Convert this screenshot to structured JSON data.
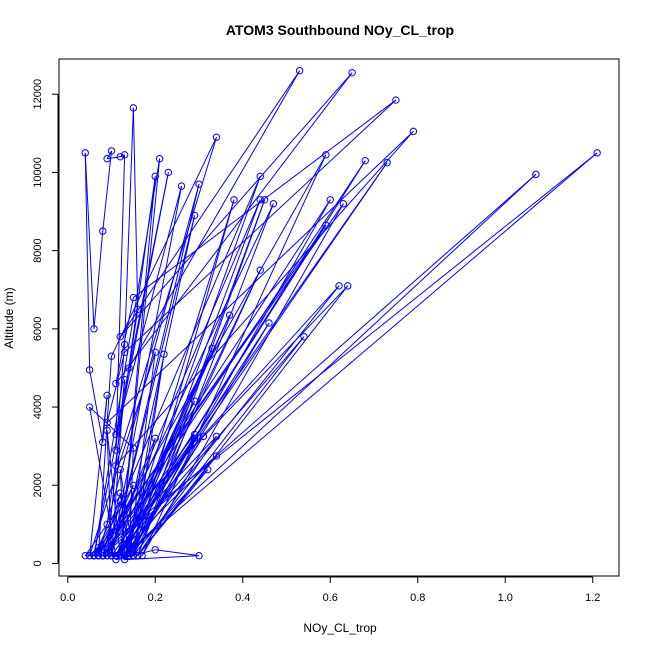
{
  "chart_data": {
    "type": "line",
    "title": "ATOM3 Southbound NOy_CL_trop",
    "xlabel": "NOy_CL_trop",
    "ylabel": "Altitude (m)",
    "xlim": [
      -0.02,
      1.26
    ],
    "ylim": [
      -320,
      12900
    ],
    "x_ticks": [
      0.0,
      0.2,
      0.4,
      0.6,
      0.8,
      1.0,
      1.2
    ],
    "x_tick_labels": [
      "0.0",
      "0.2",
      "0.4",
      "0.6",
      "0.8",
      "1.0",
      "1.2"
    ],
    "y_ticks": [
      0,
      2000,
      4000,
      6000,
      8000,
      10000,
      12000
    ],
    "y_tick_labels": [
      "0",
      "2000",
      "4000",
      "6000",
      "8000",
      "10000",
      "12000"
    ],
    "grid": false,
    "legend": "none",
    "line_color": "#0000ff",
    "marker": "open-circle",
    "series": [
      {
        "x": [
          0.05,
          0.09,
          0.08,
          0.05,
          0.04,
          0.06,
          0.08,
          0.1,
          0.09,
          0.12,
          0.13,
          0.11,
          0.13,
          0.15,
          0.16,
          0.14,
          0.53,
          0.12,
          0.65,
          0.11,
          0.15,
          0.75,
          0.13,
          0.09,
          0.79,
          0.11,
          0.34,
          0.1,
          0.07,
          0.04,
          0.09,
          0.2,
          0.12,
          0.21,
          0.06,
          0.23,
          0.11,
          0.26,
          0.1,
          0.3,
          0.07,
          0.44,
          0.13,
          0.38,
          0.15,
          0.45,
          0.16,
          0.47,
          0.09,
          0.44,
          0.14,
          0.6,
          0.07,
          0.59,
          0.17,
          0.63,
          0.06,
          1.21,
          0.13,
          1.07,
          0.08,
          0.68,
          0.11,
          0.73,
          0.1,
          0.29,
          0.12,
          0.37,
          0.11,
          0.59,
          0.06,
          0.62,
          0.13,
          0.44,
          0.14,
          0.46,
          0.12,
          0.33,
          0.11,
          0.54,
          0.15,
          0.22,
          0.14,
          0.2,
          0.05,
          0.64,
          0.16,
          0.34,
          0.11,
          0.29,
          0.12,
          0.29,
          0.09,
          0.2,
          0.13,
          0.31,
          0.14,
          0.32,
          0.16,
          0.34,
          0.08,
          0.29,
          0.15,
          0.11,
          0.2,
          0.3,
          0.13,
          0.07,
          0.12,
          0.09,
          0.1,
          0.14,
          0.12,
          0.08,
          0.15,
          0.06,
          0.1,
          0.13,
          0.07,
          0.14,
          0.15,
          0.05,
          0.11,
          0.06,
          0.12,
          0.09,
          0.13,
          0.1,
          0.14,
          0.07,
          0.11,
          0.13,
          0.12,
          0.15,
          0.14,
          0.1,
          0.08,
          0.12
        ],
        "y": [
          200,
          4300,
          3100,
          4950,
          10500,
          6000,
          8500,
          10550,
          10350,
          10400,
          10450,
          2900,
          5600,
          11650,
          6500,
          5000,
          12600,
          5800,
          12550,
          4600,
          6800,
          11850,
          5400,
          3600,
          11050,
          2500,
          10900,
          5300,
          200,
          200,
          1000,
          9900,
          200,
          10350,
          200,
          10000,
          3300,
          9650,
          200,
          9700,
          200,
          9900,
          200,
          9300,
          200,
          9300,
          200,
          9200,
          200,
          9300,
          200,
          9300,
          200,
          10450,
          200,
          9200,
          200,
          10500,
          200,
          9950,
          200,
          10300,
          200,
          10250,
          200,
          8900,
          200,
          6350,
          200,
          8650,
          200,
          7100,
          200,
          7500,
          200,
          6150,
          200,
          5500,
          200,
          5800,
          200,
          5350,
          200,
          5400,
          200,
          7100,
          200,
          2750,
          200,
          3200,
          200,
          4150,
          200,
          3200,
          200,
          3250,
          200,
          2400,
          200,
          3250,
          200,
          3300,
          200,
          100,
          350,
          200,
          100,
          400,
          200,
          3400,
          200,
          200,
          1800,
          200,
          2000,
          200,
          200,
          200,
          300,
          200,
          2950,
          4000,
          200,
          200,
          1600,
          200,
          4700,
          200,
          200,
          200,
          200,
          200,
          2400,
          200,
          200,
          200,
          200,
          200
        ]
      }
    ]
  }
}
